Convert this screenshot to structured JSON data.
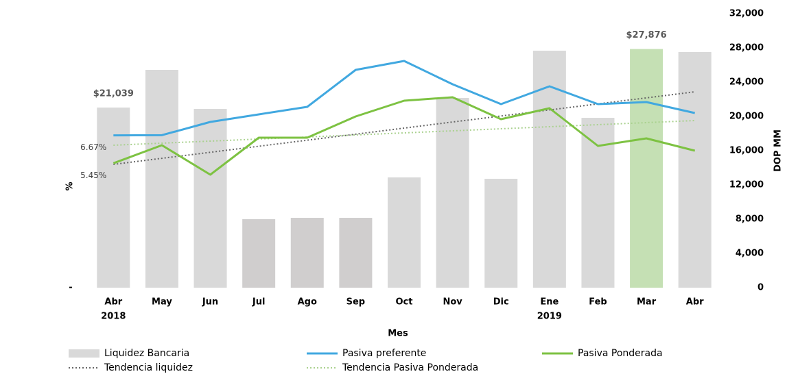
{
  "chart_data": {
    "type": "combo",
    "x_label": "Mes",
    "y_label": "%",
    "y2_label": "DOP MM",
    "categories": [
      "Abr",
      "May",
      "Jun",
      "Jul",
      "Ago",
      "Sep",
      "Oct",
      "Nov",
      "Dic",
      "Ene",
      "Feb",
      "Mar",
      "Abr"
    ],
    "category_years": [
      "2018",
      null,
      null,
      null,
      null,
      null,
      null,
      null,
      null,
      "2019",
      null,
      null,
      null
    ],
    "ylim": [
      0,
      12
    ],
    "yticks": [
      {
        "value": 0,
        "label": "-"
      }
    ],
    "y2lim": [
      0,
      32000
    ],
    "y2ticks": [
      0,
      {
        "value": 4000,
        "label": "4,000"
      },
      {
        "value": 8000,
        "label": "8,000"
      },
      {
        "value": 12000,
        "label": "12,000"
      },
      {
        "value": 16000,
        "label": "16,000"
      },
      {
        "value": 20000,
        "label": "20,000"
      },
      {
        "value": 24000,
        "label": "24,000"
      },
      {
        "value": 28000,
        "label": "28,000"
      },
      {
        "value": 32000,
        "label": "32,000"
      }
    ],
    "series": [
      {
        "name": "Liquidez Bancaria",
        "type": "bar",
        "axis": "y2",
        "color": "#d9d9d9",
        "colors": [
          "#d9d9d9",
          "#d9d9d9",
          "#d9d9d9",
          "#d0cece",
          "#d0cece",
          "#d0cece",
          "#d9d9d9",
          "#d9d9d9",
          "#d9d9d9",
          "#d9d9d9",
          "#d9d9d9",
          "#c5e0b4",
          "#d9d9d9"
        ],
        "values": [
          21039,
          25440,
          20880,
          8000,
          8160,
          8160,
          12880,
          22160,
          12720,
          27680,
          19840,
          27876,
          27520
        ],
        "value_labels": [
          "$21,039",
          null,
          null,
          null,
          null,
          null,
          null,
          null,
          null,
          null,
          null,
          "$27,876",
          null
        ]
      },
      {
        "name": "Pasiva preferente",
        "type": "line",
        "color": "#41a8e0",
        "values": [
          6.67,
          6.68,
          7.26,
          7.59,
          7.92,
          9.54,
          9.93,
          8.91,
          8.04,
          8.82,
          8.04,
          8.13,
          7.65
        ],
        "value_labels": [
          "6.67%",
          null,
          null,
          null,
          null,
          null,
          null,
          null,
          null,
          null,
          null,
          null,
          null
        ]
      },
      {
        "name": "Pasiva Ponderada",
        "type": "line",
        "color": "#7dc242",
        "values": [
          5.45,
          6.24,
          4.95,
          6.57,
          6.57,
          7.5,
          8.19,
          8.34,
          7.38,
          7.86,
          6.21,
          6.54,
          6.0
        ],
        "value_labels": [
          "5.45%",
          null,
          null,
          null,
          null,
          null,
          null,
          null,
          null,
          null,
          null,
          null,
          null
        ]
      },
      {
        "name": "Tendencia liquidez",
        "type": "dotted",
        "axis": "y2",
        "color": "#666666",
        "values": [
          14400,
          15110,
          15810,
          16520,
          17230,
          17930,
          18640,
          19350,
          20050,
          20760,
          21470,
          22170,
          22880
        ]
      },
      {
        "name": "Tendencia Pasiva Ponderada",
        "type": "dotted",
        "color": "#a9d18e",
        "values": [
          6.24,
          6.33,
          6.42,
          6.51,
          6.6,
          6.69,
          6.78,
          6.87,
          6.96,
          7.05,
          7.14,
          7.23,
          7.32
        ]
      }
    ]
  }
}
